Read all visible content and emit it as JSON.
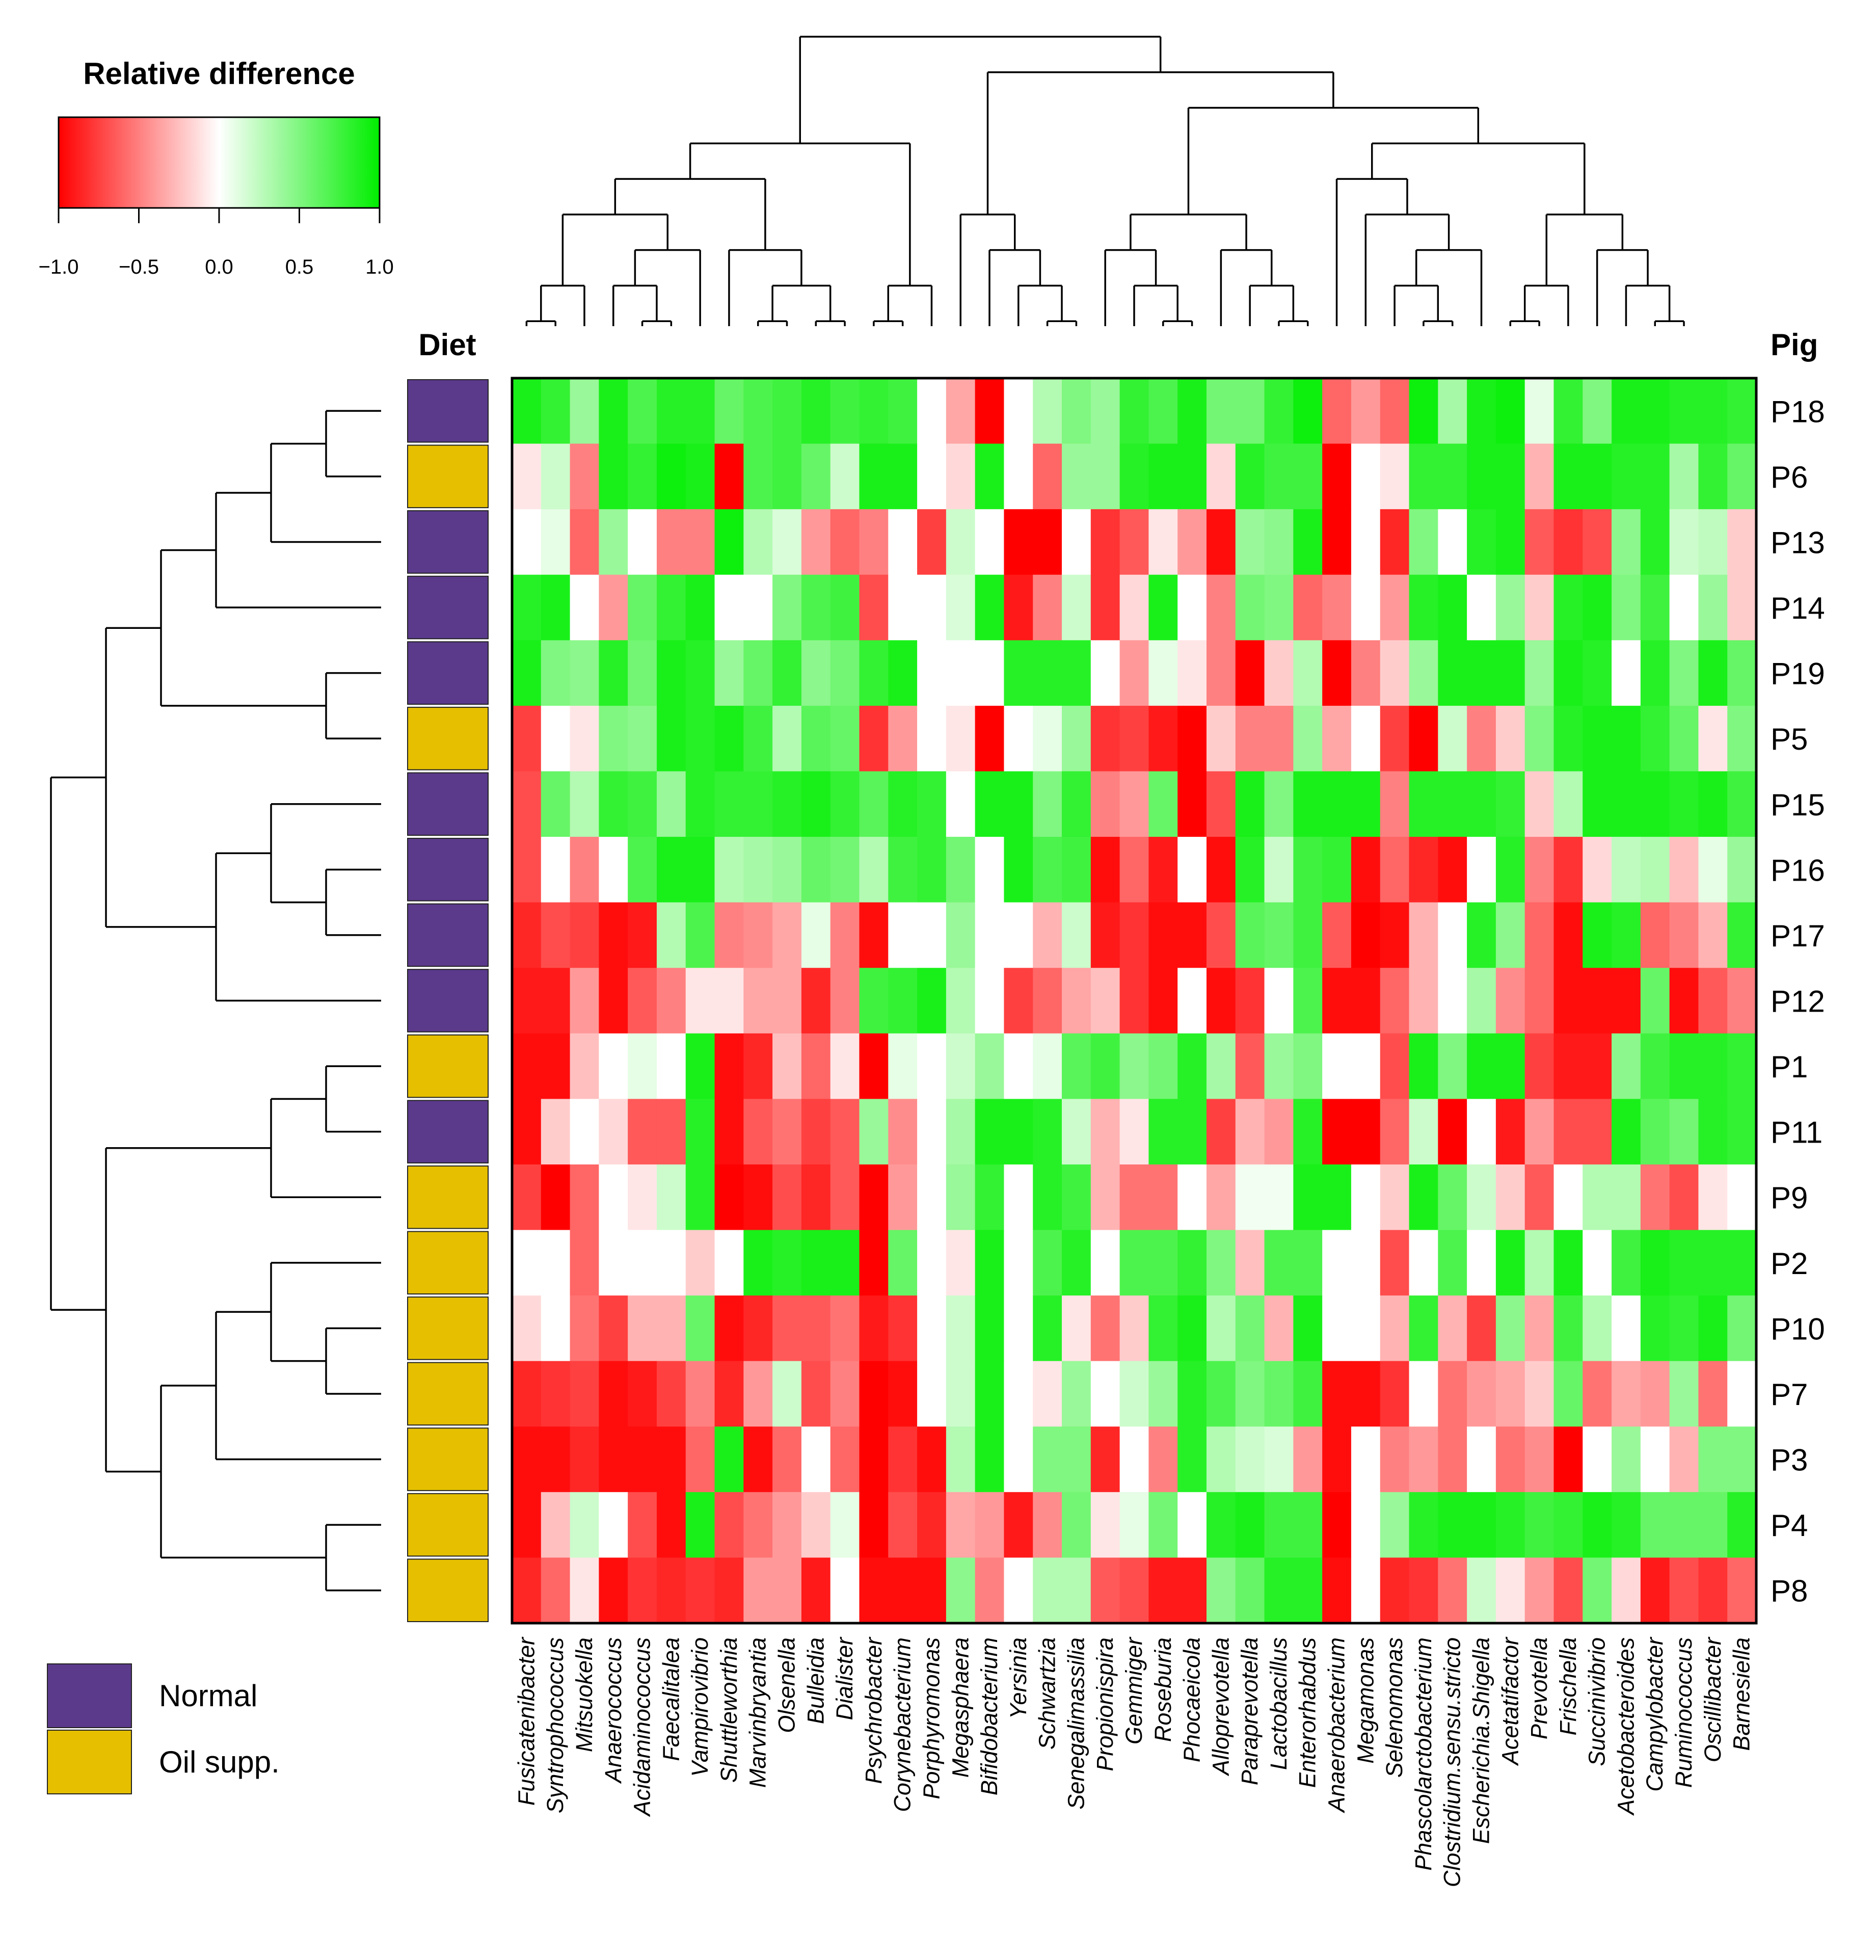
{
  "chart_data": {
    "type": "heatmap",
    "title": "Relative difference",
    "colorbar": {
      "label": "Relative difference",
      "range": [
        -1.0,
        1.0
      ],
      "ticks": [
        "−1.0",
        "−0.5",
        "0.0",
        "0.5",
        "1.0"
      ],
      "low_color": "#ff0000",
      "mid_color": "#ffffff",
      "high_color": "#00ee00"
    },
    "row_annotation_title": "Diet",
    "row_axis_title": "Pig",
    "columns": [
      "Fusicatenibacter",
      "Syntrophococcus",
      "Mitsuokella",
      "Anaerococcus",
      "Acidaminococcus",
      "Faecalitalea",
      "Vampirovibrio",
      "Shuttleworthia",
      "Marvinbryantia",
      "Olsenella",
      "Bulleidia",
      "Dialister",
      "Psychrobacter",
      "Corynebacterium",
      "Porphyromonas",
      "Megasphaera",
      "Bifidobacterium",
      "Yersinia",
      "Schwartzia",
      "Senegalimassilia",
      "Propionispira",
      "Gemmiger",
      "Roseburia",
      "Phocaeicola",
      "Alloprevotella",
      "Paraprevotella",
      "Lactobacillus",
      "Enterorhabdus",
      "Anaerobacterium",
      "Megamonas",
      "Selenomonas",
      "Phascolarctobacterium",
      "Clostridium.sensu.stricto",
      "Escherichia.Shigella",
      "Acetatifactor",
      "Prevotella",
      "Frischella",
      "Succinivibrio",
      "Acetobacteroides",
      "Campylobacter",
      "Ruminococcus",
      "Oscillibacter",
      "Barnesiella"
    ],
    "rows": [
      "P18",
      "P6",
      "P13",
      "P14",
      "P19",
      "P5",
      "P15",
      "P16",
      "P17",
      "P12",
      "P1",
      "P11",
      "P9",
      "P2",
      "P10",
      "P7",
      "P3",
      "P4",
      "P8"
    ],
    "diet": [
      "Normal",
      "Oil supp.",
      "Normal",
      "Normal",
      "Normal",
      "Oil supp.",
      "Normal",
      "Normal",
      "Normal",
      "Normal",
      "Oil supp.",
      "Normal",
      "Oil supp.",
      "Oil supp.",
      "Oil supp.",
      "Oil supp.",
      "Oil supp.",
      "Oil supp.",
      "Oil supp."
    ],
    "legend": [
      {
        "label": "Normal",
        "color": "#5b3a8c"
      },
      {
        "label": "Oil supp.",
        "color": "#e6c000"
      }
    ],
    "values": [
      [
        0.9,
        0.8,
        0.4,
        0.9,
        0.7,
        0.85,
        0.85,
        0.6,
        0.7,
        0.75,
        0.85,
        0.75,
        0.8,
        0.75,
        0.0,
        -0.35,
        -1.0,
        0.0,
        0.3,
        0.5,
        0.4,
        0.8,
        0.7,
        0.9,
        0.55,
        0.55,
        0.8,
        0.95,
        -0.6,
        -0.4,
        -0.6,
        0.95,
        0.35,
        0.9,
        0.95,
        0.1,
        0.8,
        0.5,
        0.9,
        0.9,
        0.85,
        0.85,
        0.8
      ],
      [
        -0.1,
        0.2,
        -0.5,
        0.9,
        0.8,
        0.95,
        0.9,
        -1.0,
        0.7,
        0.75,
        0.6,
        0.2,
        0.9,
        0.9,
        0.0,
        -0.15,
        0.9,
        0.0,
        -0.6,
        0.4,
        0.4,
        0.85,
        0.9,
        0.9,
        -0.15,
        0.85,
        0.75,
        0.75,
        -1.0,
        0.0,
        -0.1,
        0.8,
        0.8,
        0.9,
        0.9,
        -0.3,
        0.9,
        0.9,
        0.85,
        0.85,
        0.35,
        0.8,
        0.6
      ],
      [
        0.0,
        0.1,
        -0.6,
        0.4,
        0.0,
        -0.5,
        -0.5,
        0.95,
        0.3,
        0.15,
        -0.4,
        -0.6,
        -0.5,
        0.0,
        -0.75,
        0.2,
        0.0,
        -1.0,
        -1.0,
        0.0,
        -0.8,
        -0.65,
        -0.1,
        -0.4,
        -0.95,
        0.4,
        0.45,
        0.9,
        -1.0,
        0.0,
        -0.85,
        0.5,
        0.0,
        0.85,
        0.9,
        -0.65,
        -0.8,
        -0.7,
        0.45,
        0.85,
        0.2,
        0.25,
        -0.2
      ],
      [
        0.85,
        0.9,
        0.0,
        -0.4,
        0.6,
        0.8,
        0.9,
        0.0,
        0.0,
        0.5,
        0.7,
        0.75,
        -0.7,
        0.0,
        0.0,
        0.15,
        0.9,
        -0.9,
        -0.5,
        0.2,
        -0.8,
        -0.15,
        0.9,
        0.0,
        -0.5,
        0.55,
        0.5,
        -0.6,
        -0.5,
        0.0,
        -0.4,
        0.85,
        0.9,
        0.0,
        0.4,
        -0.2,
        0.85,
        0.9,
        0.5,
        0.75,
        0.0,
        0.4,
        -0.2
      ],
      [
        0.9,
        0.5,
        0.45,
        0.85,
        0.55,
        0.9,
        0.85,
        0.4,
        0.6,
        0.8,
        0.45,
        0.55,
        0.8,
        0.9,
        0.0,
        0.0,
        0.0,
        0.85,
        0.85,
        0.85,
        0.0,
        -0.4,
        0.1,
        -0.1,
        -0.5,
        -1.0,
        -0.2,
        0.3,
        -1.0,
        -0.5,
        -0.2,
        0.4,
        0.9,
        0.9,
        0.9,
        0.4,
        0.9,
        0.85,
        0.0,
        0.85,
        0.5,
        0.9,
        0.6
      ],
      [
        -0.75,
        0.0,
        -0.1,
        0.5,
        0.45,
        0.9,
        0.85,
        0.9,
        0.75,
        0.3,
        0.65,
        0.6,
        -0.8,
        -0.4,
        0.0,
        -0.1,
        -1.0,
        0.0,
        0.1,
        0.4,
        -0.8,
        -0.75,
        -0.9,
        -1.0,
        -0.2,
        -0.5,
        -0.5,
        0.4,
        -0.35,
        0.0,
        -0.75,
        -1.0,
        0.2,
        -0.5,
        -0.2,
        0.5,
        0.85,
        0.9,
        0.9,
        0.8,
        0.6,
        -0.1,
        0.5
      ],
      [
        -0.7,
        0.6,
        0.3,
        0.8,
        0.75,
        0.4,
        0.85,
        0.8,
        0.8,
        0.85,
        0.9,
        0.8,
        0.65,
        0.85,
        0.8,
        0.0,
        0.9,
        0.9,
        0.5,
        0.8,
        -0.5,
        -0.4,
        0.6,
        -1.0,
        -0.7,
        0.9,
        0.5,
        0.9,
        0.9,
        0.9,
        -0.5,
        0.85,
        0.85,
        0.85,
        0.8,
        -0.2,
        0.3,
        0.9,
        0.9,
        0.9,
        0.85,
        0.9,
        0.75
      ],
      [
        -0.7,
        0.0,
        -0.5,
        0.0,
        0.7,
        0.9,
        0.9,
        0.3,
        0.35,
        0.4,
        0.6,
        0.55,
        0.3,
        0.75,
        0.8,
        0.55,
        0.0,
        0.9,
        0.7,
        0.75,
        -0.95,
        -0.6,
        -0.9,
        0.0,
        -0.95,
        0.85,
        0.2,
        0.75,
        0.8,
        -0.95,
        -0.6,
        -0.85,
        -0.95,
        0.0,
        0.85,
        -0.5,
        -0.8,
        -0.15,
        0.25,
        0.3,
        -0.25,
        0.1,
        0.4
      ],
      [
        -0.85,
        -0.7,
        -0.75,
        -0.95,
        -0.9,
        0.3,
        0.7,
        -0.5,
        -0.45,
        -0.35,
        0.1,
        -0.5,
        -0.95,
        0.0,
        0.0,
        0.4,
        0.0,
        0.0,
        -0.3,
        0.2,
        -0.9,
        -0.8,
        -0.95,
        -0.95,
        -0.7,
        0.65,
        0.6,
        0.75,
        -0.65,
        -1.0,
        -0.95,
        -0.3,
        0.0,
        0.85,
        0.45,
        -0.6,
        -0.95,
        0.9,
        0.85,
        -0.6,
        -0.5,
        -0.3,
        0.8
      ],
      [
        -0.9,
        -0.9,
        -0.4,
        -0.95,
        -0.65,
        -0.5,
        -0.1,
        -0.1,
        -0.35,
        -0.35,
        -0.85,
        -0.5,
        0.75,
        0.8,
        0.9,
        0.3,
        0.0,
        -0.75,
        -0.6,
        -0.35,
        -0.25,
        -0.8,
        -0.95,
        0.0,
        -0.95,
        -0.8,
        0.0,
        0.7,
        -0.95,
        -0.95,
        -0.6,
        -0.3,
        0.0,
        0.35,
        -0.45,
        -0.6,
        -0.95,
        -0.95,
        -0.95,
        0.6,
        -0.95,
        -0.65,
        -0.5
      ],
      [
        -0.95,
        -0.95,
        -0.25,
        0.0,
        0.1,
        0.0,
        0.9,
        -0.95,
        -0.85,
        -0.25,
        -0.6,
        -0.1,
        -1.0,
        0.1,
        0.0,
        0.2,
        0.4,
        0.0,
        0.1,
        0.65,
        0.75,
        0.45,
        0.55,
        0.85,
        0.35,
        -0.65,
        0.4,
        0.5,
        0.0,
        0.0,
        -0.7,
        0.9,
        0.5,
        0.9,
        0.9,
        -0.75,
        -0.9,
        -0.9,
        0.45,
        0.75,
        0.85,
        0.85,
        0.8
      ],
      [
        -0.95,
        -0.2,
        0.0,
        -0.15,
        -0.65,
        -0.65,
        0.85,
        -0.95,
        -0.65,
        -0.55,
        -0.75,
        -0.65,
        0.4,
        -0.45,
        0.0,
        0.35,
        0.9,
        0.9,
        0.85,
        0.2,
        -0.3,
        -0.1,
        0.85,
        0.85,
        -0.75,
        -0.3,
        -0.4,
        0.85,
        -1.0,
        -1.0,
        -0.6,
        0.2,
        -1.0,
        0.0,
        -0.9,
        -0.4,
        -0.7,
        -0.7,
        0.9,
        0.65,
        0.55,
        0.85,
        0.8
      ],
      [
        -0.75,
        -1.0,
        -0.6,
        0.0,
        -0.1,
        0.2,
        0.85,
        -1.0,
        -0.95,
        -0.7,
        -0.85,
        -0.65,
        -1.0,
        -0.4,
        0.0,
        0.4,
        0.8,
        0.0,
        0.85,
        0.75,
        -0.3,
        -0.55,
        -0.55,
        0.0,
        -0.35,
        0.05,
        0.05,
        0.9,
        0.9,
        0.0,
        -0.2,
        0.9,
        0.6,
        0.2,
        -0.2,
        -0.65,
        0.0,
        0.3,
        0.3,
        -0.55,
        -0.7,
        -0.1,
        0.0
      ],
      [
        0.0,
        0.0,
        -0.6,
        0.0,
        0.0,
        0.0,
        -0.2,
        0.0,
        0.9,
        0.85,
        0.9,
        0.9,
        -1.0,
        0.6,
        0.0,
        -0.1,
        0.9,
        0.0,
        0.7,
        0.85,
        0.0,
        0.7,
        0.7,
        0.8,
        0.5,
        -0.25,
        0.7,
        0.7,
        0.0,
        0.0,
        -0.7,
        0.0,
        0.7,
        0.0,
        0.9,
        0.3,
        0.9,
        0.0,
        0.75,
        0.9,
        0.85,
        0.85,
        0.85
      ],
      [
        -0.15,
        0.0,
        -0.55,
        -0.75,
        -0.3,
        -0.3,
        0.6,
        -0.95,
        -0.85,
        -0.65,
        -0.65,
        -0.55,
        -0.9,
        -0.8,
        0.0,
        0.2,
        0.9,
        0.0,
        0.85,
        -0.1,
        -0.55,
        -0.2,
        0.8,
        0.9,
        0.3,
        0.55,
        -0.3,
        0.9,
        0.0,
        0.0,
        -0.3,
        0.8,
        -0.3,
        -0.75,
        0.45,
        -0.35,
        0.75,
        0.3,
        0.0,
        0.85,
        0.8,
        0.9,
        0.55
      ],
      [
        -0.85,
        -0.8,
        -0.75,
        -0.95,
        -0.9,
        -0.75,
        -0.5,
        -0.85,
        -0.4,
        0.2,
        -0.7,
        -0.5,
        -1.0,
        -0.95,
        0.0,
        0.2,
        0.9,
        0.0,
        -0.1,
        0.4,
        0.0,
        0.2,
        0.4,
        0.85,
        0.7,
        0.5,
        0.6,
        0.75,
        -0.95,
        -0.95,
        -0.8,
        0.0,
        -0.55,
        -0.4,
        -0.35,
        -0.2,
        0.6,
        -0.55,
        -0.35,
        -0.4,
        0.4,
        -0.55,
        0.0
      ],
      [
        -0.95,
        -0.95,
        -0.85,
        -0.95,
        -0.95,
        -0.95,
        -0.6,
        0.9,
        -0.95,
        -0.6,
        0.0,
        -0.6,
        -1.0,
        -0.8,
        -0.95,
        0.3,
        0.9,
        0.0,
        0.5,
        0.5,
        -0.85,
        0.0,
        -0.5,
        0.85,
        0.3,
        0.2,
        0.15,
        -0.4,
        -0.95,
        0.0,
        -0.5,
        -0.4,
        -0.55,
        0.0,
        -0.55,
        -0.45,
        -1.0,
        0.0,
        0.4,
        0.0,
        -0.3,
        0.5,
        0.5
      ],
      [
        -0.95,
        -0.25,
        0.2,
        0.0,
        -0.7,
        -0.95,
        0.9,
        -0.7,
        -0.55,
        -0.4,
        -0.2,
        0.1,
        -1.0,
        -0.7,
        -0.85,
        -0.35,
        -0.4,
        -0.9,
        -0.45,
        0.55,
        -0.1,
        0.1,
        0.55,
        0.0,
        0.85,
        0.9,
        0.75,
        0.75,
        -1.0,
        0.0,
        0.4,
        0.85,
        0.9,
        0.9,
        0.85,
        0.75,
        0.8,
        0.9,
        0.85,
        0.6,
        0.6,
        0.6,
        0.85
      ],
      [
        -0.85,
        -0.6,
        -0.1,
        -0.95,
        -0.8,
        -0.85,
        -0.8,
        -0.85,
        -0.4,
        -0.4,
        -0.9,
        0.0,
        -0.95,
        -0.95,
        -0.95,
        0.45,
        -0.5,
        0.0,
        0.3,
        0.3,
        -0.65,
        -0.7,
        -0.9,
        -0.9,
        0.45,
        0.6,
        0.85,
        0.85,
        -0.95,
        0.0,
        -0.85,
        -0.8,
        -0.55,
        0.2,
        -0.1,
        -0.4,
        -0.7,
        0.55,
        -0.15,
        -0.9,
        -0.7,
        -0.8,
        -0.6
      ]
    ]
  }
}
